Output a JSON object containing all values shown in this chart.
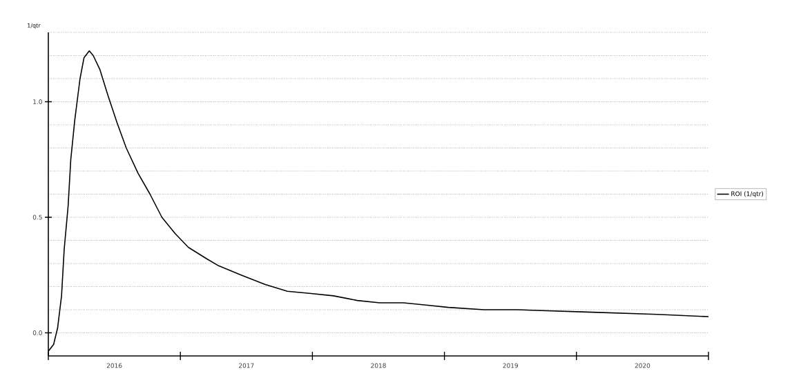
{
  "chart_data": {
    "type": "line",
    "ylabel": "1/qtr",
    "x": [
      2016.0,
      2016.04,
      2016.07,
      2016.1,
      2016.12,
      2016.15,
      2016.17,
      2016.2,
      2016.24,
      2016.27,
      2016.31,
      2016.34,
      2016.39,
      2016.45,
      2016.52,
      2016.59,
      2016.68,
      2016.77,
      2016.86,
      2016.96,
      2017.06,
      2017.2,
      2017.29,
      2017.46,
      2017.64,
      2017.81,
      2017.99,
      2018.16,
      2018.34,
      2018.51,
      2018.69,
      2018.86,
      2019.03,
      2019.3,
      2019.55,
      2020.08,
      2020.61,
      2021.0
    ],
    "series": [
      {
        "name": "ROI (1/qtr)",
        "color": "#000000",
        "values": [
          -0.08,
          -0.05,
          0.02,
          0.16,
          0.36,
          0.55,
          0.75,
          0.92,
          1.1,
          1.19,
          1.22,
          1.2,
          1.14,
          1.03,
          0.91,
          0.8,
          0.69,
          0.6,
          0.5,
          0.43,
          0.37,
          0.32,
          0.29,
          0.25,
          0.21,
          0.18,
          0.17,
          0.16,
          0.14,
          0.13,
          0.13,
          0.12,
          0.11,
          0.1,
          0.1,
          0.09,
          0.08,
          0.07
        ]
      }
    ],
    "xlim": [
      2016,
      2021
    ],
    "xticks": [
      {
        "value": 2016,
        "label": null
      },
      {
        "value": 2017,
        "label": null
      },
      {
        "value": 2018,
        "label": null
      },
      {
        "value": 2019,
        "label": null
      },
      {
        "value": 2020,
        "label": null
      },
      {
        "value": 2021,
        "label": null
      },
      {
        "value": 2016.5,
        "label": "2016"
      },
      {
        "value": 2017.5,
        "label": "2017"
      },
      {
        "value": 2018.5,
        "label": "2018"
      },
      {
        "value": 2019.5,
        "label": "2019"
      },
      {
        "value": 2020.5,
        "label": "2020"
      }
    ],
    "ylim": [
      -0.1,
      1.3
    ],
    "yticks": [
      {
        "value": 0,
        "label": "0.0"
      },
      {
        "value": 0.5,
        "label": "0.5"
      },
      {
        "value": 1.0,
        "label": "1.0"
      },
      {
        "value": 0.1,
        "label": null
      },
      {
        "value": 0.2,
        "label": null
      },
      {
        "value": 0.3,
        "label": null
      },
      {
        "value": 0.4,
        "label": null
      },
      {
        "value": 0.6,
        "label": null
      },
      {
        "value": 0.7,
        "label": null
      },
      {
        "value": 0.8,
        "label": null
      },
      {
        "value": 0.9,
        "label": null
      },
      {
        "value": 1.1,
        "label": null
      },
      {
        "value": 1.2,
        "label": null
      },
      {
        "value": 1.3,
        "label": null
      }
    ],
    "grid": "y",
    "legend": "right",
    "marker": "none",
    "line_style": "solid"
  }
}
